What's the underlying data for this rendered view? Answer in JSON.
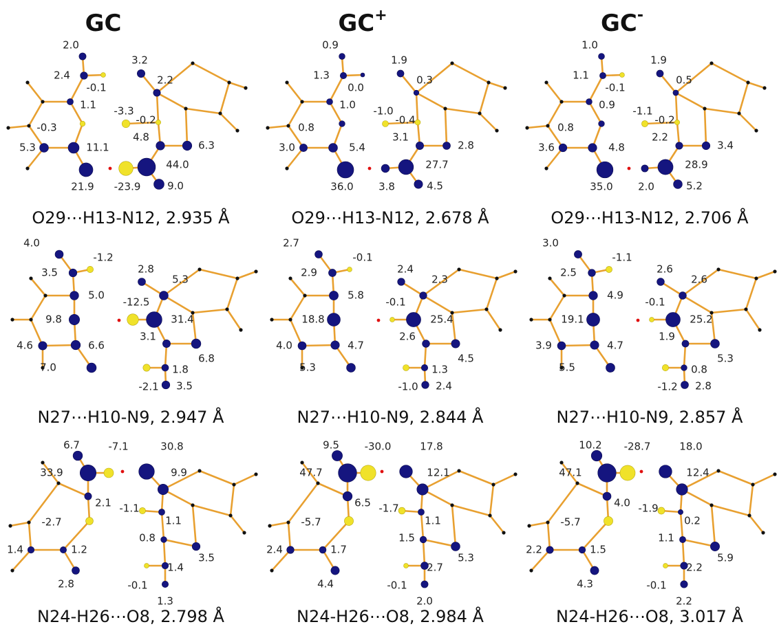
{
  "columns": [
    {
      "text": "GC"
    },
    {
      "text": "GC",
      "sup": "+"
    },
    {
      "text": "GC",
      "sup": "-"
    }
  ],
  "rows": [
    [
      {
        "caption": "O29⋯H13-N12, 2.935 Å",
        "values": [
          2.0,
          2.4,
          -0.1,
          1.1,
          -0.3,
          5.3,
          11.1,
          21.9,
          3.2,
          2.2,
          -3.3,
          -0.2,
          4.8,
          6.3,
          -23.9,
          44.0,
          9.0
        ],
        "value_labels": [
          "2.0",
          "2.4",
          "-0.1",
          "1.1",
          "-0.3",
          "5.3",
          "11.1",
          "21.9",
          "3.2",
          "2.2",
          "-3.3",
          "-0.2",
          "4.8",
          "6.3",
          "-23.9",
          "44.0",
          "9.0"
        ]
      },
      {
        "caption": "O29⋯H13-N12, 2.678 Å",
        "values": [
          0.9,
          1.3,
          0.0,
          1.0,
          0.8,
          3.0,
          5.4,
          36.0,
          1.9,
          0.3,
          -1.0,
          -0.4,
          3.1,
          2.8,
          3.8,
          27.7,
          4.5
        ],
        "value_labels": [
          "0.9",
          "1.3",
          "0.0",
          "1.0",
          "0.8",
          "3.0",
          "5.4",
          "36.0",
          "1.9",
          "0.3",
          "-1.0",
          "-0.4",
          "3.1",
          "2.8",
          "3.8",
          "27.7",
          "4.5"
        ]
      },
      {
        "caption": "O29⋯H13-N12, 2.706 Å",
        "values": [
          1.0,
          1.1,
          -0.1,
          0.9,
          0.8,
          3.6,
          4.8,
          35.0,
          1.9,
          0.5,
          -1.1,
          -0.2,
          2.2,
          3.4,
          2.0,
          28.9,
          5.2
        ],
        "value_labels": [
          "1.0",
          "1.1",
          "-0.1",
          "0.9",
          "0.8",
          "3.6",
          "4.8",
          "35.0",
          "1.9",
          "0.5",
          "-1.1",
          "-0.2",
          "2.2",
          "3.4",
          "2.0",
          "28.9",
          "5.2"
        ]
      }
    ],
    [
      {
        "caption": "N27⋯H10-N9, 2.947 Å",
        "values": [
          4.0,
          3.5,
          -1.2,
          5.0,
          9.8,
          4.6,
          6.6,
          7.0,
          2.8,
          5.3,
          -12.5,
          31.4,
          3.1,
          6.8,
          1.8,
          -2.1,
          3.5
        ],
        "value_labels": [
          "4.0",
          "3.5",
          "-1.2",
          "5.0",
          "9.8",
          "4.6",
          "6.6",
          "7.0",
          "2.8",
          "5.3",
          "-12.5",
          "31.4",
          "3.1",
          "6.8",
          "1.8",
          "-2.1",
          "3.5"
        ]
      },
      {
        "caption": "N27⋯H10-N9, 2.844 Å",
        "values": [
          2.7,
          2.9,
          -0.1,
          5.8,
          18.8,
          4.0,
          4.7,
          5.3,
          2.4,
          2.3,
          -0.1,
          25.4,
          2.6,
          4.5,
          1.3,
          -1.0,
          2.4
        ],
        "value_labels": [
          "2.7",
          "2.9",
          "-0.1",
          "5.8",
          "18.8",
          "4.0",
          "4.7",
          "5.3",
          "2.4",
          "2.3",
          "-0.1",
          "25.4",
          "2.6",
          "4.5",
          "1.3",
          "-1.0",
          "2.4"
        ]
      },
      {
        "caption": "N27⋯H10-N9, 2.857 Å",
        "values": [
          3.0,
          2.5,
          -1.1,
          4.9,
          19.1,
          3.9,
          4.7,
          5.5,
          2.6,
          2.6,
          -0.1,
          25.2,
          1.9,
          5.3,
          0.8,
          -1.2,
          2.8
        ],
        "value_labels": [
          "3.0",
          "2.5",
          "-1.1",
          "4.9",
          "19.1",
          "3.9",
          "4.7",
          "5.5",
          "2.6",
          "2.6",
          "-0.1",
          "25.2",
          "1.9",
          "5.3",
          "0.8",
          "-1.2",
          "2.8"
        ]
      }
    ],
    [
      {
        "caption": "N24-H26⋯O8, 2.798 Å",
        "values": [
          6.7,
          -7.1,
          33.9,
          30.8,
          9.9,
          2.1,
          -1.1,
          1.1,
          -2.7,
          0.8,
          1.4,
          1.2,
          3.5,
          2.8,
          -0.1,
          1.4,
          1.3
        ],
        "value_labels": [
          "6.7",
          "-7.1",
          "33.9",
          "30.8",
          "9.9",
          "2.1",
          "-1.1",
          "1.1",
          "-2.7",
          "0.8",
          "1.4",
          "1.2",
          "3.5",
          "2.8",
          "-0.1",
          "1.4",
          "1.3"
        ]
      },
      {
        "caption": "N24-H26⋯O8, 2.984 Å",
        "values": [
          9.5,
          -30.0,
          47.7,
          17.8,
          12.1,
          6.5,
          -1.7,
          1.1,
          -5.7,
          1.5,
          2.4,
          1.7,
          5.3,
          4.4,
          -0.1,
          2.7,
          2.0
        ],
        "value_labels": [
          "9.5",
          "-30.0",
          "47.7",
          "17.8",
          "12.1",
          "6.5",
          "-1.7",
          "1.1",
          "-5.7",
          "1.5",
          "2.4",
          "1.7",
          "5.3",
          "4.4",
          "-0.1",
          "2.7",
          "2.0"
        ]
      },
      {
        "caption": "N24-H26⋯O8, 3.017 Å",
        "values": [
          10.2,
          -28.7,
          47.1,
          18.0,
          12.4,
          4.0,
          -1.9,
          0.2,
          -5.7,
          1.1,
          2.2,
          1.5,
          5.9,
          4.3,
          -0.1,
          2.2,
          2.2
        ],
        "value_labels": [
          "10.2",
          "-28.7",
          "47.1",
          "18.0",
          "12.4",
          "4.0",
          "-1.9",
          "0.2",
          "-5.7",
          "1.1",
          "2.2",
          "1.5",
          "5.9",
          "4.3",
          "-0.1",
          "2.2",
          "2.2"
        ]
      }
    ]
  ]
}
